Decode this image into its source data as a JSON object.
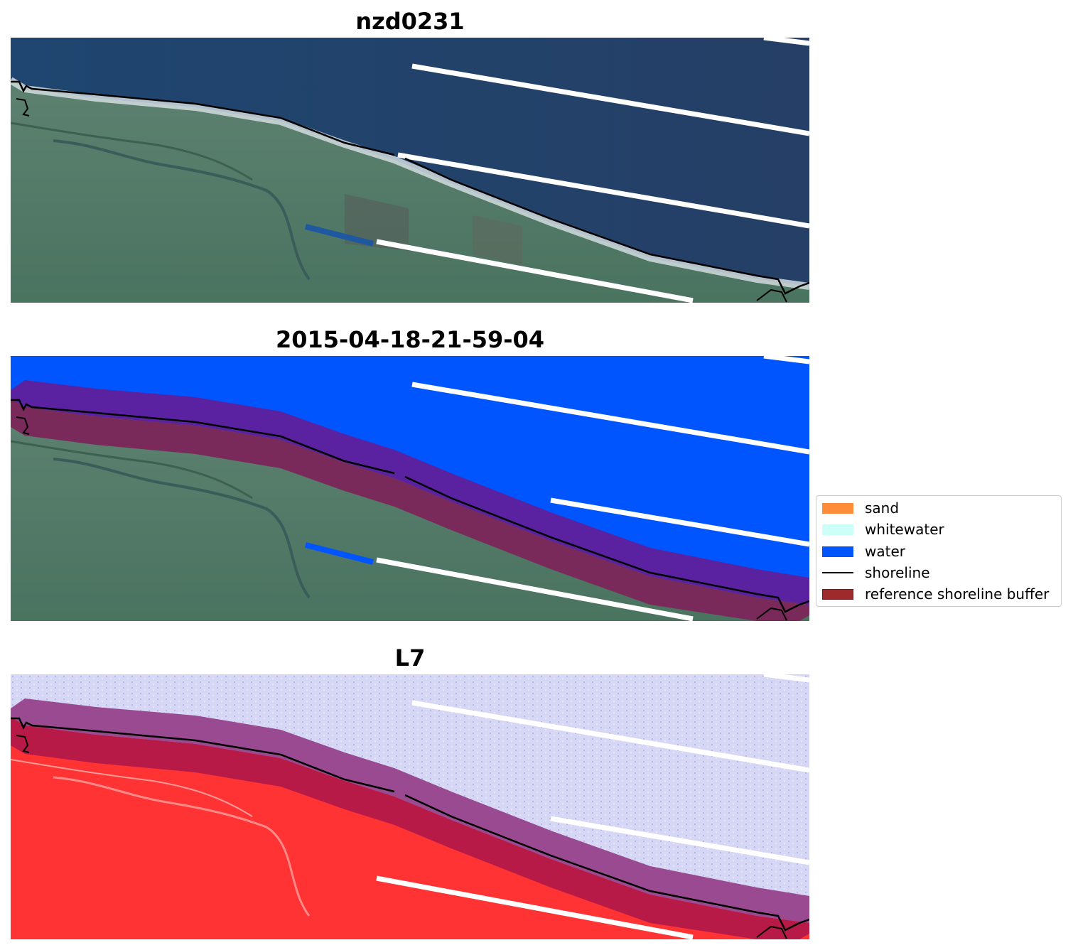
{
  "panels": [
    {
      "title": "nzd0231",
      "kind": "rgb"
    },
    {
      "title": "2015-04-18-21-59-04",
      "kind": "classified"
    },
    {
      "title": "L7",
      "kind": "index"
    }
  ],
  "legend": {
    "items": [
      {
        "label": "sand",
        "type": "patch",
        "color": "#ff8c38"
      },
      {
        "label": "whitewater",
        "type": "patch",
        "color": "#ccfff8"
      },
      {
        "label": "water",
        "type": "patch",
        "color": "#0055ff"
      },
      {
        "label": "shoreline",
        "type": "line",
        "color": "#000000"
      },
      {
        "label": "reference shoreline buffer",
        "type": "patch",
        "color": "#9e2a2b"
      }
    ]
  },
  "colors": {
    "sea_rgb": "#22466e",
    "land_rgb": "#4f7a66",
    "water_class": "#0055ff",
    "buffer_sea": "#5a22a0",
    "buffer_land": "#7a2a5a",
    "index_sea": "#d6d6f5",
    "index_land": "#ff3333"
  }
}
